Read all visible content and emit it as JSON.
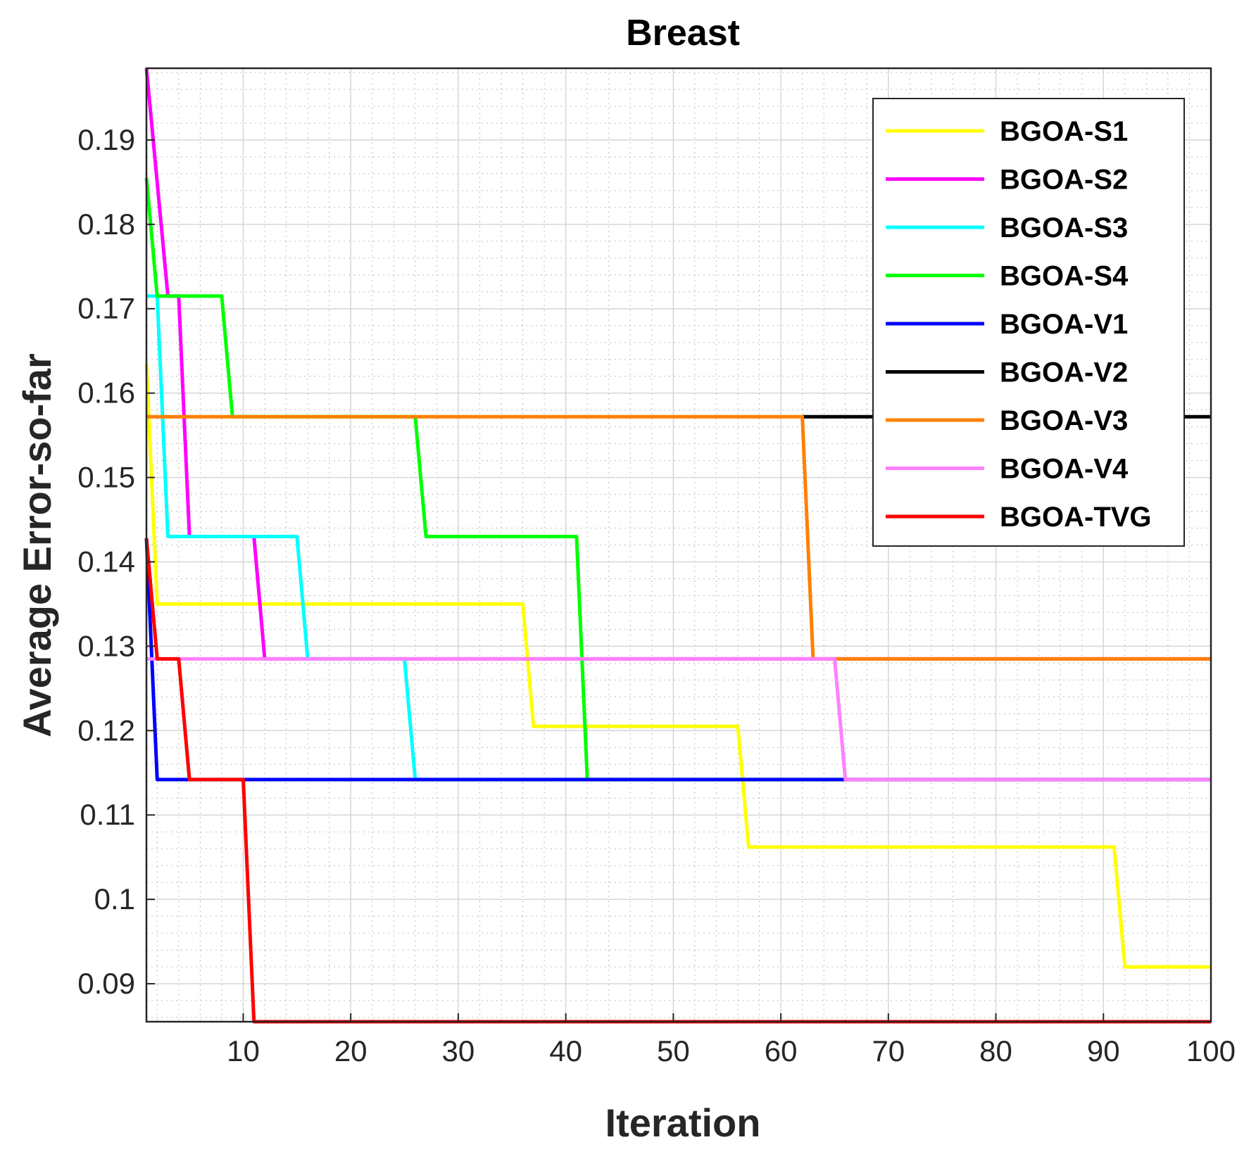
{
  "chart_data": {
    "type": "line",
    "title": "Breast",
    "xlabel": "Iteration",
    "ylabel": "Average Error-so-far",
    "xlim": [
      1,
      100
    ],
    "ylim": [
      0.0855,
      0.1985
    ],
    "xticks": [
      10,
      20,
      30,
      40,
      50,
      60,
      70,
      80,
      90,
      100
    ],
    "xtick_labels": [
      "10",
      "20",
      "30",
      "40",
      "50",
      "60",
      "70",
      "80",
      "90",
      "100"
    ],
    "yticks": [
      0.09,
      0.1,
      0.11,
      0.12,
      0.13,
      0.14,
      0.15,
      0.16,
      0.17,
      0.18,
      0.19
    ],
    "ytick_labels": [
      "0.09",
      "0.1",
      "0.11",
      "0.12",
      "0.13",
      "0.14",
      "0.15",
      "0.16",
      "0.17",
      "0.18",
      "0.19"
    ],
    "grid": true,
    "legend_position": "top-right",
    "series": [
      {
        "name": "BGOA-S1",
        "color": "#ffff00",
        "points": [
          [
            1,
            0.1635
          ],
          [
            2,
            0.135
          ],
          [
            36,
            0.135
          ],
          [
            37,
            0.1205
          ],
          [
            56,
            0.1205
          ],
          [
            57,
            0.1062
          ],
          [
            91,
            0.1062
          ],
          [
            92,
            0.092
          ],
          [
            100,
            0.092
          ]
        ]
      },
      {
        "name": "BGOA-S2",
        "color": "#ff00ff",
        "points": [
          [
            1,
            0.1985
          ],
          [
            3,
            0.1715
          ],
          [
            4,
            0.1715
          ],
          [
            5,
            0.143
          ],
          [
            11,
            0.143
          ],
          [
            12,
            0.1285
          ],
          [
            100,
            0.1285
          ]
        ]
      },
      {
        "name": "BGOA-S3",
        "color": "#00ffff",
        "points": [
          [
            1,
            0.1715
          ],
          [
            2,
            0.1715
          ],
          [
            3,
            0.143
          ],
          [
            15,
            0.143
          ],
          [
            16,
            0.1285
          ],
          [
            25,
            0.1285
          ],
          [
            26,
            0.1142
          ],
          [
            100,
            0.1142
          ]
        ]
      },
      {
        "name": "BGOA-S4",
        "color": "#00ff00",
        "points": [
          [
            1,
            0.1855
          ],
          [
            2,
            0.1715
          ],
          [
            8,
            0.1715
          ],
          [
            9,
            0.1572
          ],
          [
            26,
            0.1572
          ],
          [
            27,
            0.143
          ],
          [
            41,
            0.143
          ],
          [
            42,
            0.1142
          ],
          [
            100,
            0.1142
          ]
        ]
      },
      {
        "name": "BGOA-V1",
        "color": "#0000ff",
        "points": [
          [
            1,
            0.1428
          ],
          [
            2,
            0.1142
          ],
          [
            100,
            0.1142
          ]
        ]
      },
      {
        "name": "BGOA-V2",
        "color": "#000000",
        "points": [
          [
            62,
            0.1572
          ],
          [
            100,
            0.1572
          ]
        ]
      },
      {
        "name": "BGOA-V3",
        "color": "#ff8000",
        "points": [
          [
            1,
            0.1572
          ],
          [
            62,
            0.1572
          ],
          [
            63,
            0.1285
          ],
          [
            100,
            0.1285
          ]
        ]
      },
      {
        "name": "BGOA-V4",
        "color": "#ff80ff",
        "points": [
          [
            1,
            0.1285
          ],
          [
            65,
            0.1285
          ],
          [
            66,
            0.1142
          ],
          [
            100,
            0.1142
          ]
        ]
      },
      {
        "name": "BGOA-TVG",
        "color": "#ff0000",
        "points": [
          [
            1,
            0.1428
          ],
          [
            2,
            0.1285
          ],
          [
            4,
            0.1285
          ],
          [
            5,
            0.1142
          ],
          [
            10,
            0.1142
          ],
          [
            11,
            0.0855
          ],
          [
            100,
            0.0855
          ]
        ]
      }
    ]
  }
}
